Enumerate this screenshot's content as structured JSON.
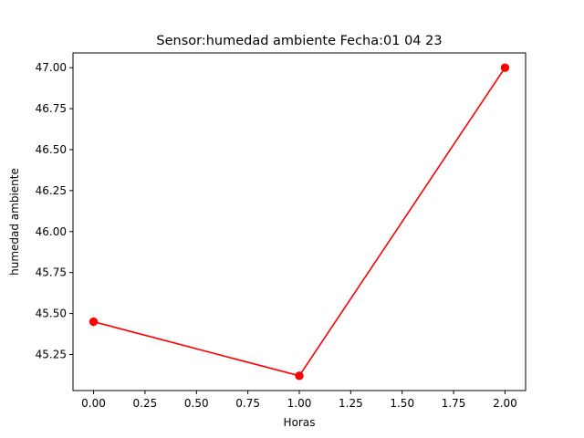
{
  "chart_data": {
    "type": "line",
    "title": "Sensor:humedad ambiente Fecha:01 04 23",
    "xlabel": "Horas",
    "ylabel": "humedad ambiente",
    "xlim": [
      -0.1,
      2.1
    ],
    "ylim": [
      45.03,
      47.09
    ],
    "xticks": [
      0.0,
      0.25,
      0.5,
      0.75,
      1.0,
      1.25,
      1.5,
      1.75,
      2.0
    ],
    "xtick_labels": [
      "0.00",
      "0.25",
      "0.50",
      "0.75",
      "1.00",
      "1.25",
      "1.50",
      "1.75",
      "2.00"
    ],
    "yticks": [
      45.25,
      45.5,
      45.75,
      46.0,
      46.25,
      46.5,
      46.75,
      47.0
    ],
    "ytick_labels": [
      "45.25",
      "45.50",
      "45.75",
      "46.00",
      "46.25",
      "46.50",
      "46.75",
      "47.00"
    ],
    "grid": false,
    "series": [
      {
        "color": "#ff0000",
        "marker": "circle",
        "x": [
          0,
          1,
          2
        ],
        "y": [
          45.45,
          45.12,
          47.0
        ]
      }
    ]
  }
}
